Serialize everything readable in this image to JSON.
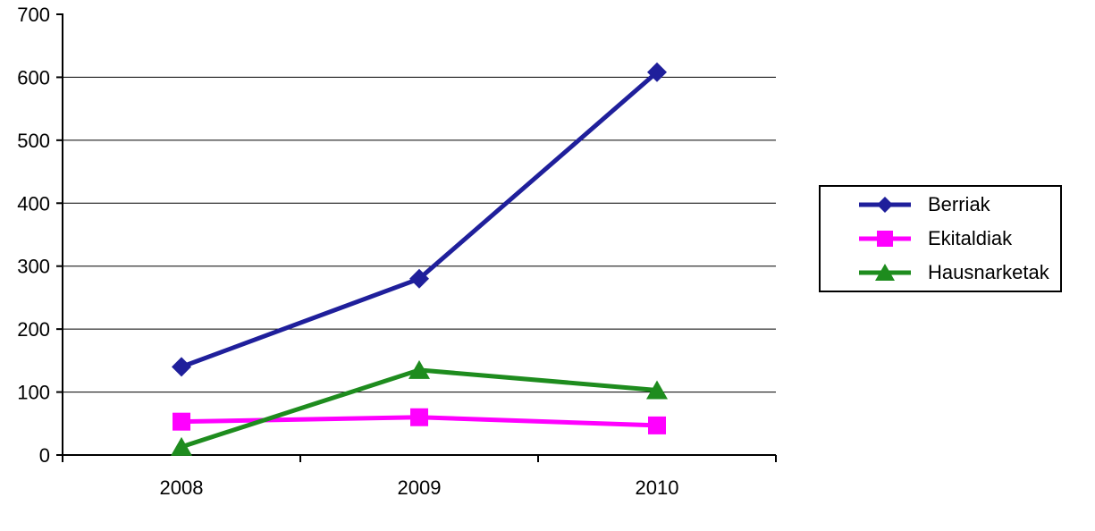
{
  "chart_data": {
    "type": "line",
    "title": "",
    "xlabel": "",
    "ylabel": "",
    "categories": [
      "2008",
      "2009",
      "2010"
    ],
    "series": [
      {
        "name": "Berriak",
        "values": [
          140,
          280,
          608
        ],
        "color": "#1f1f9b",
        "marker": "diamond"
      },
      {
        "name": "Ekitaldiak",
        "values": [
          53,
          60,
          47
        ],
        "color": "#ff00ff",
        "marker": "square"
      },
      {
        "name": "Hausnarketak",
        "values": [
          13,
          135,
          103
        ],
        "color": "#1e8c1e",
        "marker": "triangle"
      }
    ],
    "ylim": [
      0,
      700
    ],
    "yticks": [
      0,
      100,
      200,
      300,
      400,
      500,
      600,
      700
    ],
    "grid": true,
    "legend_position": "right",
    "axis_color": "#000000",
    "gridline_color": "#000000",
    "background_color": "#ffffff"
  }
}
